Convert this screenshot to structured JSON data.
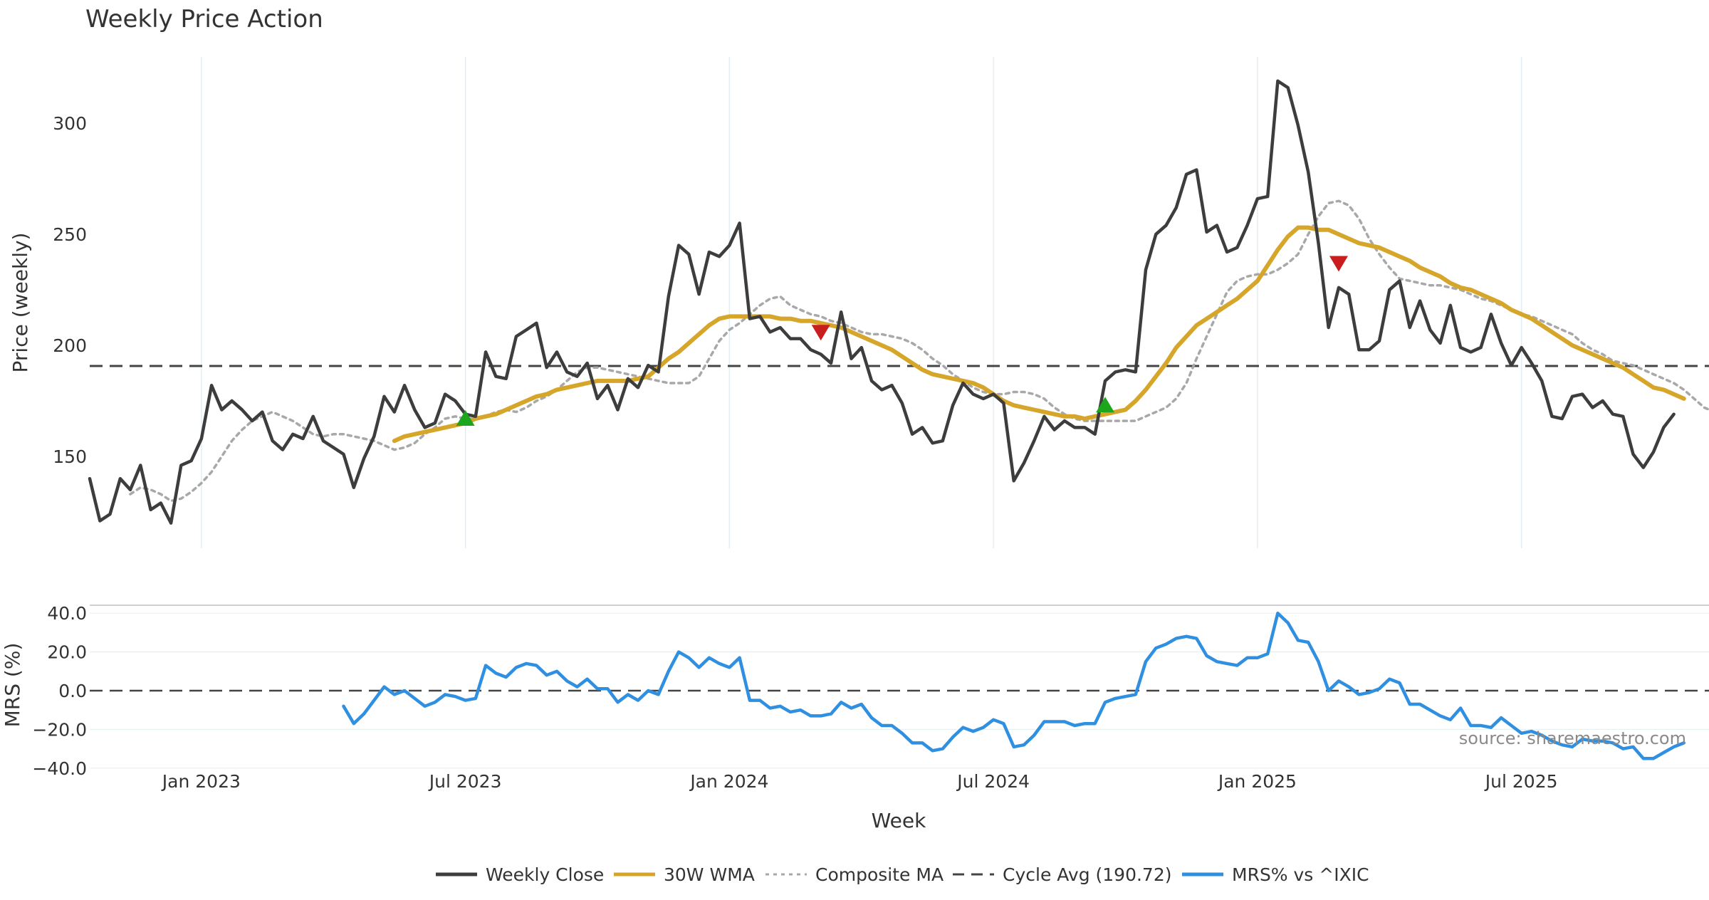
{
  "chart_data": {
    "type": "line",
    "title": "Weekly Price Action",
    "source": "source: sharemaestro.com",
    "xlabel": "Week",
    "x_ticks": [
      "Jan 2023",
      "Jul 2023",
      "Jan 2024",
      "Jul 2024",
      "Jan 2025",
      "Jul 2025"
    ],
    "x_tick_index": [
      11,
      37,
      63,
      89,
      115,
      141
    ],
    "panels": [
      {
        "id": "price",
        "ylabel": "Price (weekly)",
        "ylim": [
          108,
          330
        ],
        "yticks": [
          150,
          200,
          250,
          300
        ],
        "cycle_avg": 190.72,
        "series": [
          {
            "name": "Weekly Close",
            "start_index": 0,
            "color": "#3d3d3d",
            "values": [
              140,
              121,
              124,
              140,
              135,
              146,
              126,
              129,
              120,
              146,
              148,
              158,
              182,
              171,
              175,
              171,
              166,
              170,
              157,
              153,
              160,
              158,
              168,
              157,
              154,
              151,
              136,
              149,
              159,
              177,
              170,
              182,
              171,
              163,
              165,
              178,
              175,
              169,
              168,
              197,
              186,
              185,
              204,
              207,
              210,
              190,
              197,
              188,
              186,
              192,
              176,
              182,
              171,
              185,
              181,
              191,
              188,
              222,
              245,
              241,
              223,
              242,
              240,
              245,
              255,
              212,
              213,
              206,
              208,
              203,
              203,
              198,
              196,
              192,
              215,
              194,
              199,
              184,
              180,
              182,
              174,
              160,
              163,
              156,
              157,
              173,
              183,
              178,
              176,
              178,
              174,
              139,
              147,
              157,
              168,
              162,
              166,
              163,
              163,
              160,
              184,
              188,
              189,
              188,
              234,
              250,
              254,
              262,
              277,
              279,
              251,
              254,
              242,
              244,
              254,
              266,
              267,
              319,
              316,
              299,
              278,
              246,
              208,
              226,
              223,
              198,
              198,
              202,
              225,
              229,
              208,
              220,
              207,
              201,
              218,
              199,
              197,
              199,
              214,
              201,
              191,
              199,
              192,
              184,
              168,
              167,
              177,
              178,
              172,
              175,
              169,
              168,
              151,
              145,
              152,
              163,
              169
            ]
          },
          {
            "name": "30W WMA",
            "start_index": 30,
            "color": "#d6a62a",
            "values": [
              157,
              159,
              160,
              161,
              162,
              163,
              164,
              165,
              167,
              168,
              169,
              171,
              173,
              175,
              177,
              178,
              180,
              181,
              182,
              183,
              184,
              184,
              184,
              184,
              185,
              186,
              190,
              194,
              197,
              201,
              205,
              209,
              212,
              213,
              213,
              213,
              213,
              213,
              212,
              212,
              211,
              211,
              210,
              209,
              208,
              206,
              204,
              202,
              200,
              198,
              195,
              192,
              189,
              187,
              186,
              185,
              184,
              183,
              181,
              178,
              175,
              173,
              172,
              171,
              170,
              169,
              168,
              168,
              167,
              168,
              169,
              170,
              171,
              175,
              180,
              186,
              192,
              199,
              204,
              209,
              212,
              215,
              218,
              221,
              225,
              229,
              236,
              243,
              249,
              253,
              253,
              252,
              252,
              250,
              248,
              246,
              245,
              244,
              242,
              240,
              238,
              235,
              233,
              231,
              228,
              226,
              225,
              223,
              221,
              219,
              216,
              214,
              212,
              209,
              206,
              203,
              200,
              198,
              196,
              194,
              192,
              190,
              187,
              184,
              181,
              180,
              178,
              176
            ]
          },
          {
            "name": "Composite MA",
            "start_index": 4,
            "color": "#a8a8a8",
            "values": [
              133,
              136,
              135,
              133,
              130,
              131,
              134,
              138,
              143,
              150,
              157,
              162,
              166,
              168,
              170,
              168,
              166,
              163,
              160,
              159,
              160,
              160,
              159,
              158,
              157,
              155,
              153,
              154,
              156,
              160,
              163,
              167,
              168,
              167,
              167,
              168,
              170,
              171,
              170,
              172,
              175,
              177,
              180,
              184,
              188,
              190,
              190,
              189,
              188,
              187,
              186,
              185,
              184,
              183,
              183,
              183,
              186,
              194,
              202,
              207,
              210,
              214,
              218,
              221,
              222,
              218,
              216,
              214,
              213,
              211,
              210,
              208,
              206,
              205,
              205,
              204,
              203,
              201,
              198,
              194,
              191,
              187,
              184,
              181,
              179,
              178,
              178,
              179,
              179,
              178,
              176,
              172,
              169,
              167,
              166,
              166,
              166,
              166,
              166,
              166,
              168,
              170,
              172,
              176,
              183,
              194,
              204,
              214,
              224,
              229,
              231,
              232,
              232,
              234,
              237,
              241,
              250,
              258,
              264,
              265,
              263,
              257,
              248,
              241,
              235,
              230,
              229,
              228,
              227,
              227,
              226,
              225,
              223,
              221,
              220,
              218,
              216,
              214,
              213,
              211,
              209,
              207,
              205,
              201,
              198,
              196,
              193,
              192,
              191,
              189,
              187,
              185,
              183,
              180,
              176,
              172,
              170
            ]
          }
        ],
        "markers": [
          {
            "type": "buy",
            "index": 37,
            "value": 167,
            "color": "#1ea51e"
          },
          {
            "type": "sell",
            "index": 72,
            "value": 206,
            "color": "#c81e1e"
          },
          {
            "type": "buy",
            "index": 100,
            "value": 173,
            "color": "#1ea51e"
          },
          {
            "type": "sell",
            "index": 123,
            "value": 237,
            "color": "#c81e1e"
          }
        ]
      },
      {
        "id": "mrs",
        "ylabel": "MRS (%)",
        "ylim": [
          -40,
          40
        ],
        "yticks": [
          40.0,
          20.0,
          0.0,
          -20.0,
          -40.0
        ],
        "ytick_labels": [
          "40.0",
          "20.0",
          "0.0",
          "−20.0",
          "−40.0"
        ],
        "zero_line": 0,
        "series": [
          {
            "name": "MRS% vs ^IXIC",
            "start_index": 25,
            "color": "#2f8fe0",
            "values": [
              -8,
              -17,
              -12,
              -5,
              2,
              -2,
              0,
              -4,
              -8,
              -6,
              -2,
              -3,
              -5,
              -4,
              13,
              9,
              7,
              12,
              14,
              13,
              8,
              10,
              5,
              2,
              6,
              1,
              1,
              -6,
              -2,
              -5,
              0,
              -2,
              10,
              20,
              17,
              12,
              17,
              14,
              12,
              17,
              -5,
              -5,
              -9,
              -8,
              -11,
              -10,
              -13,
              -13,
              -12,
              -6,
              -9,
              -7,
              -14,
              -18,
              -18,
              -22,
              -27,
              -27,
              -31,
              -30,
              -24,
              -19,
              -21,
              -19,
              -15,
              -17,
              -29,
              -28,
              -23,
              -16,
              -16,
              -16,
              -18,
              -17,
              -17,
              -6,
              -4,
              -3,
              -2,
              15,
              22,
              24,
              27,
              28,
              27,
              18,
              15,
              14,
              13,
              17,
              17,
              19,
              40,
              35,
              26,
              25,
              15,
              0,
              5,
              2,
              -2,
              -1,
              1,
              6,
              4,
              -7,
              -7,
              -10,
              -13,
              -15,
              -9,
              -18,
              -18,
              -19,
              -14,
              -18,
              -22,
              -21,
              -23,
              -26,
              -28,
              -29,
              -25,
              -26,
              -26,
              -27,
              -30,
              -29,
              -35,
              -35,
              -32,
              -29,
              -27
            ]
          }
        ]
      }
    ],
    "legend": [
      {
        "label": "Weekly Close",
        "style": "solid",
        "color": "#3d3d3d"
      },
      {
        "label": "30W WMA",
        "style": "solid",
        "color": "#d6a62a"
      },
      {
        "label": "Composite MA",
        "style": "dotted",
        "color": "#a8a8a8"
      },
      {
        "label": "Cycle Avg (190.72)",
        "style": "dashed",
        "color": "#444444"
      },
      {
        "label": "MRS% vs ^IXIC",
        "style": "solid",
        "color": "#2f8fe0"
      }
    ]
  }
}
